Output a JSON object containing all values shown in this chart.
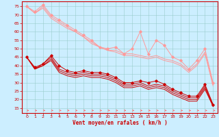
{
  "xlabel": "Vent moyen/en rafales ( km/h )",
  "bg_color": "#cceeff",
  "grid_color": "#99cccc",
  "x_values": [
    0,
    1,
    2,
    3,
    4,
    5,
    6,
    7,
    8,
    9,
    10,
    11,
    12,
    13,
    14,
    15,
    16,
    17,
    18,
    19,
    20,
    21,
    22,
    23
  ],
  "light1_y": [
    75,
    72,
    76,
    70,
    67,
    64,
    61,
    58,
    55,
    51,
    50,
    51,
    47,
    50,
    60,
    47,
    55,
    52,
    45,
    43,
    38,
    43,
    50,
    30
  ],
  "light2_y": [
    75,
    71,
    75,
    69,
    66,
    63,
    60,
    57,
    54,
    51,
    49,
    49,
    47,
    47,
    46,
    45,
    46,
    44,
    43,
    41,
    37,
    41,
    48,
    29
  ],
  "light3_y": [
    75,
    71,
    74,
    68,
    65,
    62,
    60,
    57,
    53,
    51,
    49,
    48,
    46,
    46,
    45,
    44,
    45,
    43,
    42,
    40,
    36,
    40,
    47,
    28
  ],
  "dark1_y": [
    45,
    39,
    41,
    46,
    40,
    37,
    36,
    37,
    36,
    36,
    35,
    33,
    30,
    30,
    31,
    30,
    31,
    29,
    26,
    24,
    22,
    22,
    29,
    17
  ],
  "dark2_y": [
    45,
    38,
    41,
    45,
    38,
    36,
    35,
    36,
    35,
    35,
    34,
    32,
    29,
    29,
    30,
    28,
    29,
    28,
    25,
    23,
    21,
    21,
    28,
    17
  ],
  "dark3_y": [
    45,
    38,
    40,
    44,
    37,
    35,
    34,
    35,
    34,
    34,
    33,
    31,
    28,
    28,
    29,
    27,
    28,
    27,
    24,
    22,
    20,
    20,
    27,
    16
  ],
  "dark4_y": [
    45,
    38,
    40,
    43,
    36,
    34,
    33,
    34,
    33,
    33,
    32,
    30,
    27,
    27,
    28,
    26,
    27,
    26,
    23,
    21,
    19,
    19,
    26,
    16
  ],
  "light_color": "#ff9999",
  "dark_color": "#cc0000",
  "arrow_color": "#ff6666",
  "ylim": [
    12,
    78
  ],
  "yticks": [
    15,
    20,
    25,
    30,
    35,
    40,
    45,
    50,
    55,
    60,
    65,
    70,
    75
  ],
  "xticks": [
    0,
    1,
    2,
    3,
    4,
    5,
    6,
    7,
    8,
    9,
    10,
    11,
    12,
    13,
    14,
    15,
    16,
    17,
    18,
    19,
    20,
    21,
    22,
    23
  ]
}
